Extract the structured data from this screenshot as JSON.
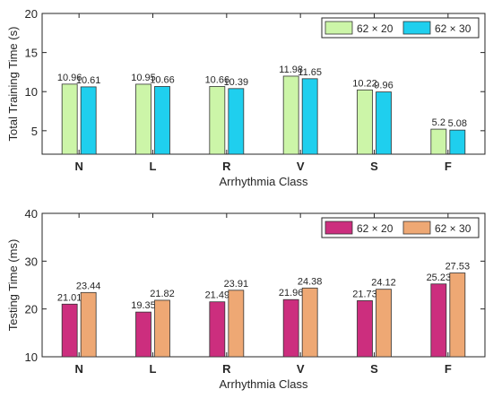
{
  "chart_data": [
    {
      "type": "bar",
      "xlabel": "Arrhythmia Class",
      "ylabel": "Total Training Time (s)",
      "ylim": [
        2,
        20
      ],
      "yticks": [
        5,
        10,
        15,
        20
      ],
      "ytick_labels": [
        "5",
        "10",
        "15",
        "20"
      ],
      "grid": false,
      "legend_position": "top-right",
      "categories": [
        "N",
        "L",
        "R",
        "V",
        "S",
        "F"
      ],
      "series": [
        {
          "name": "62 × 20",
          "color": "#ccf5a8",
          "values": [
            10.96,
            10.95,
            10.66,
            11.98,
            10.22,
            5.2
          ],
          "labels": [
            "10.96",
            "10.95",
            "10.66",
            "11.98",
            "10.22",
            "5.2"
          ]
        },
        {
          "name": "62 × 30",
          "color": "#1fcfee",
          "values": [
            10.61,
            10.66,
            10.39,
            11.65,
            9.96,
            5.08
          ],
          "labels": [
            "10.61",
            "10.66",
            "10.39",
            "11.65",
            "9.96",
            "5.08"
          ]
        }
      ]
    },
    {
      "type": "bar",
      "xlabel": "Arrhythmia Class",
      "ylabel": "Testing Time (ms)",
      "ylim": [
        10,
        40
      ],
      "yticks": [
        10,
        20,
        30,
        40
      ],
      "ytick_labels": [
        "10",
        "20",
        "30",
        "40"
      ],
      "grid": false,
      "legend_position": "top-right",
      "categories": [
        "N",
        "L",
        "R",
        "V",
        "S",
        "F"
      ],
      "series": [
        {
          "name": "62 × 20",
          "color": "#cc2e7e",
          "values": [
            21.01,
            19.35,
            21.49,
            21.96,
            21.73,
            25.23
          ],
          "labels": [
            "21.01",
            "19.35",
            "21.49",
            "21.96",
            "21.73",
            "25.23"
          ]
        },
        {
          "name": "62 × 30",
          "color": "#eea874",
          "values": [
            23.44,
            21.82,
            23.91,
            24.38,
            24.12,
            27.53
          ],
          "labels": [
            "23.44",
            "21.82",
            "23.91",
            "24.38",
            "24.12",
            "27.53"
          ]
        }
      ]
    }
  ]
}
